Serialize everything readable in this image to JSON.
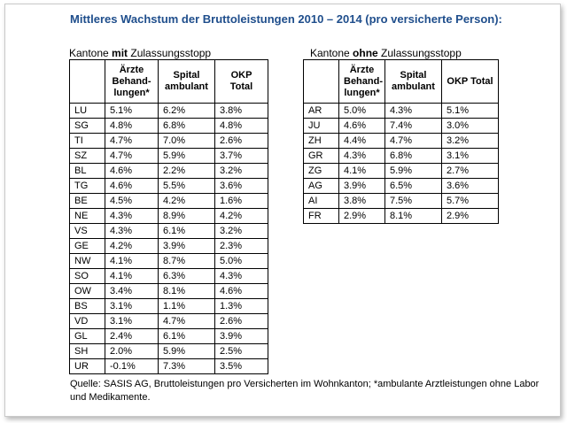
{
  "title": "Mittleres Wachstum der Bruttoleistungen 2010 – 2014 (pro versicherte Person):",
  "left_table": {
    "caption_prefix": "Kantone ",
    "caption_bold": "mit",
    "caption_suffix": " Zulassungsstopp",
    "headers": [
      "",
      "Ärzte Behand-lungen*",
      "Spital ambulant",
      "OKP Total"
    ],
    "rows": [
      [
        "LU",
        "5.1%",
        "6.2%",
        "3.8%"
      ],
      [
        "SG",
        "4.8%",
        "6.8%",
        "4.8%"
      ],
      [
        "TI",
        "4.7%",
        "7.0%",
        "2.6%"
      ],
      [
        "SZ",
        "4.7%",
        "5.9%",
        "3.7%"
      ],
      [
        "BL",
        "4.6%",
        "2.2%",
        "3.2%"
      ],
      [
        "TG",
        "4.6%",
        "5.5%",
        "3.6%"
      ],
      [
        "BE",
        "4.5%",
        "4.2%",
        "1.6%"
      ],
      [
        "NE",
        "4.3%",
        "8.9%",
        "4.2%"
      ],
      [
        "VS",
        "4.3%",
        "6.1%",
        "3.2%"
      ],
      [
        "GE",
        "4.2%",
        "3.9%",
        "2.3%"
      ],
      [
        "NW",
        "4.1%",
        "8.7%",
        "5.0%"
      ],
      [
        "SO",
        "4.1%",
        "6.3%",
        "4.3%"
      ],
      [
        "OW",
        "3.4%",
        "8.1%",
        "4.6%"
      ],
      [
        "BS",
        "3.1%",
        "1.1%",
        "1.3%"
      ],
      [
        "VD",
        "3.1%",
        "4.7%",
        "2.6%"
      ],
      [
        "GL",
        "2.4%",
        "6.1%",
        "3.9%"
      ],
      [
        "SH",
        "2.0%",
        "5.9%",
        "2.5%"
      ],
      [
        "UR",
        "-0.1%",
        "7.3%",
        "3.5%"
      ]
    ]
  },
  "right_table": {
    "caption_prefix": "Kantone ",
    "caption_bold": "ohne",
    "caption_suffix": " Zulassungsstopp",
    "headers": [
      "",
      "Ärzte Behand-lungen*",
      "Spital ambulant",
      "OKP Total"
    ],
    "rows": [
      [
        "AR",
        "5.0%",
        "4.3%",
        "5.1%"
      ],
      [
        "JU",
        "4.6%",
        "7.4%",
        "3.0%"
      ],
      [
        "ZH",
        "4.4%",
        "4.7%",
        "3.2%"
      ],
      [
        "GR",
        "4.3%",
        "6.8%",
        "3.1%"
      ],
      [
        "ZG",
        "4.1%",
        "5.9%",
        "2.7%"
      ],
      [
        "AG",
        "3.9%",
        "6.5%",
        "3.6%"
      ],
      [
        "AI",
        "3.8%",
        "7.5%",
        "5.7%"
      ],
      [
        "FR",
        "2.9%",
        "8.1%",
        "2.9%"
      ]
    ]
  },
  "footnote": "Quelle: SASIS AG, Bruttoleistungen pro Versicherten im Wohnkanton; *ambulante Arztleistungen ohne Labor und Medikamente.",
  "colors": {
    "title": "#1f4e8c",
    "border": "#000000"
  }
}
